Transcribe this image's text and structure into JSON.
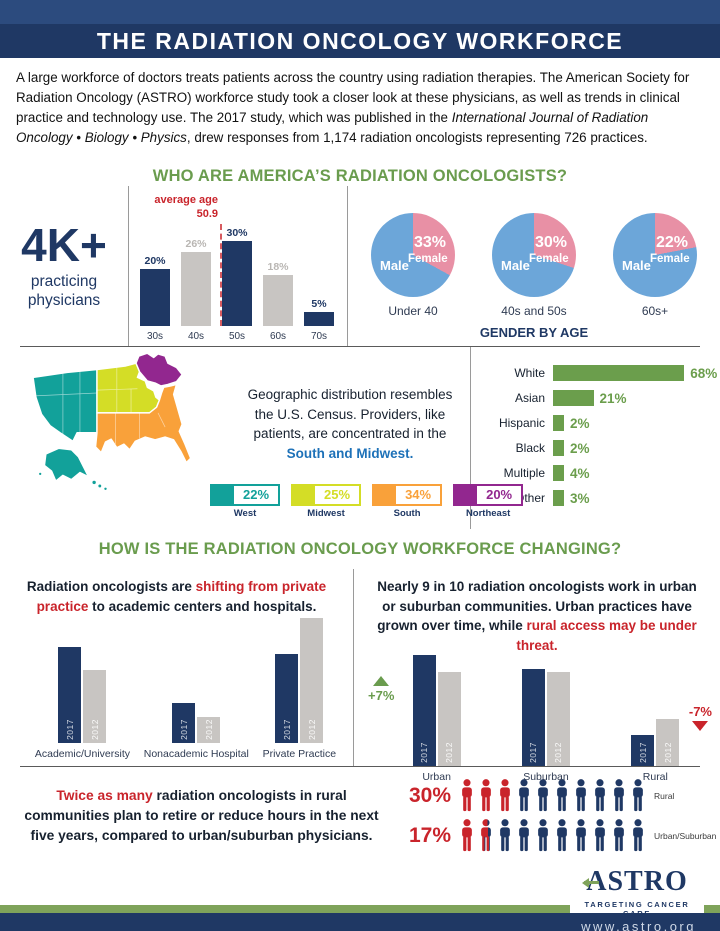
{
  "colors": {
    "navy": "#1F3864",
    "navy_light": "#2C4B7E",
    "gray_bar": "#C8C5C2",
    "gray_label": "#B9B6B3",
    "green": "#6A9C4E",
    "race_green": "#6B9E4C",
    "red": "#C9242B",
    "blue_pie": "#6CA6D9",
    "pink_pie": "#E890A5",
    "teal": "#12A19A",
    "midwest_green": "#D4DD26",
    "south_orange": "#F9A13A",
    "northeast_purple": "#92278F",
    "map_text_blue": "#1D71B8",
    "footer_green": "#7FA35A"
  },
  "header": {
    "title": "THE RADIATION ONCOLOGY WORKFORCE"
  },
  "intro": {
    "text_before": "A large workforce of doctors treats patients across the country using radiation therapies. The American Society for Radiation Oncology (ASTRO) workforce study took a closer look at these physicians, as well as trends in clinical practice and technology use. The 2017 study, which was published in the ",
    "journal": "International Journal of Radiation Oncology • Biology • Physics",
    "text_after": ", drew responses from 1,174 radiation oncologists representing 726 practices."
  },
  "section_who": {
    "heading": "WHO ARE AMERICA’S RADIATION ONCOLOGISTS?",
    "stat_value": "4K+",
    "stat_label": "practicing physicians",
    "gender_title": "GENDER BY AGE",
    "map_text": "Geographic distribution resembles the U.S. Census. Providers, like patients, are concentrated in the ",
    "map_text_bold": "South and Midwest."
  },
  "section_how": {
    "heading": "HOW IS THE RADIATION ONCOLOGY WORKFORCE CHANGING?",
    "practice_text_1": "Radiation oncologists are ",
    "practice_text_red": "shifting from private practice",
    "practice_text_2": " to academic centers and hospitals.",
    "community_text_1": "Nearly 9 in 10 radiation oncologists work in urban or suburban communities. Urban practices have grown over time, while ",
    "community_text_red": "rural access may be under threat."
  },
  "section_retire": {
    "text_red": "Twice as many",
    "text_rest": " radiation oncologists in rural communities plan to retire or reduce hours in the next five years, compared to urban/suburban physicians."
  },
  "footer": {
    "logo_text": "ASTRO",
    "logo_tagline": "TARGETING CANCER CARE",
    "url": "www.astro.org"
  },
  "chart_data": [
    {
      "id": "age_distribution",
      "type": "bar",
      "categories": [
        "30s",
        "40s",
        "50s",
        "60s",
        "70s"
      ],
      "values": [
        20,
        26,
        30,
        18,
        5
      ],
      "bar_colors": [
        "navy",
        "gray",
        "navy",
        "gray",
        "navy"
      ],
      "annotation": {
        "label": "average age",
        "value": "50.9",
        "at_category": "50s"
      },
      "ylim": [
        0,
        32
      ]
    },
    {
      "id": "gender_by_age",
      "type": "pie",
      "title": "GENDER BY AGE",
      "pies": [
        {
          "label": "Under 40",
          "female_pct": 33,
          "male_label": "Male",
          "female_label": "Female"
        },
        {
          "label": "40s and 50s",
          "female_pct": 30,
          "male_label": "Male",
          "female_label": "Female"
        },
        {
          "label": "60s+",
          "female_pct": 22,
          "male_label": "Male",
          "female_label": "Female"
        }
      ]
    },
    {
      "id": "geographic_distribution",
      "type": "map",
      "regions": [
        {
          "name": "West",
          "value": 22,
          "color": "teal"
        },
        {
          "name": "Midwest",
          "value": 25,
          "color": "midwest_green"
        },
        {
          "name": "South",
          "value": 34,
          "color": "south_orange"
        },
        {
          "name": "Northeast",
          "value": 20,
          "color": "northeast_purple"
        }
      ]
    },
    {
      "id": "race_ethnicity",
      "type": "bar",
      "orientation": "horizontal",
      "categories": [
        "White",
        "Asian",
        "Hispanic",
        "Black",
        "Multiple",
        "Other"
      ],
      "values": [
        68,
        21,
        2,
        2,
        4,
        3
      ]
    },
    {
      "id": "practice_setting",
      "type": "bar",
      "categories": [
        "Academic/University",
        "Nonacademic Hospital",
        "Private Practice"
      ],
      "series": [
        {
          "name": "2017",
          "values": [
            41,
            17,
            38
          ]
        },
        {
          "name": "2012",
          "values": [
            31,
            11,
            53
          ]
        }
      ]
    },
    {
      "id": "community_type",
      "type": "bar",
      "categories": [
        "Urban",
        "Suburban",
        "Rural"
      ],
      "series": [
        {
          "name": "2017",
          "values": [
            47,
            41,
            13
          ]
        },
        {
          "name": "2012",
          "values": [
            40,
            40,
            20
          ]
        }
      ],
      "deltas": [
        {
          "category": "Urban",
          "value": "+7%",
          "direction": "up"
        },
        {
          "category": "Rural",
          "value": "-7%",
          "direction": "down"
        }
      ]
    },
    {
      "id": "retirement_pictograph",
      "type": "pictograph",
      "rows": [
        {
          "value": 30,
          "label": "Rural",
          "icons": 10
        },
        {
          "value": 17,
          "label": "Urban/Suburban",
          "icons": 10
        }
      ]
    }
  ]
}
